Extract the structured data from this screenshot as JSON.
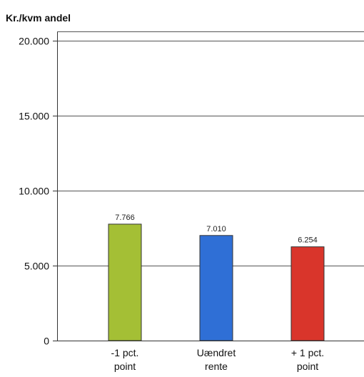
{
  "chart_data": {
    "type": "bar",
    "title": "",
    "ylabel": "Kr./kvm andel",
    "xlabel": "",
    "ylim": [
      0,
      20000
    ],
    "yticks": [
      0,
      5000,
      10000,
      15000,
      20000
    ],
    "ytick_labels": [
      "0",
      "5.000",
      "10.000",
      "15.000",
      "20.000"
    ],
    "grid": true,
    "legend": "none",
    "categories": [
      [
        "-1 pct.",
        "point"
      ],
      [
        "Uændret",
        "rente"
      ],
      [
        "+ 1 pct.",
        "point"
      ]
    ],
    "values": [
      7766,
      7010,
      6254
    ],
    "value_labels": [
      "7.766",
      "7.010",
      "6.254"
    ],
    "colors": [
      "#a4bf35",
      "#2f6fd6",
      "#d9352b"
    ]
  }
}
